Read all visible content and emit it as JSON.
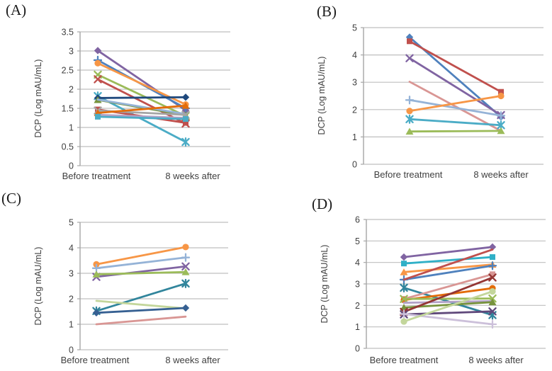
{
  "figure": {
    "panels": [
      "(A)",
      "(B)",
      "(C)",
      "(D)"
    ],
    "y_axis_label": "DCP (Log mAU/mL)",
    "x_categories": [
      "Before treatment",
      "8 weeks after"
    ],
    "colors": {
      "gridline": "#BFBFBF",
      "axis": "#A6A6A6",
      "text": "#3F3F3F"
    }
  },
  "chart_data": [
    {
      "panel": "(A)",
      "type": "line",
      "categories": [
        "Before treatment",
        "8 weeks after"
      ],
      "ylabel": "DCP (Log mAU/mL)",
      "ylim": [
        0,
        3.5
      ],
      "yticks": [
        0,
        0.5,
        1,
        1.5,
        2,
        2.5,
        3,
        3.5
      ],
      "grid": true,
      "legend": "none",
      "series": [
        {
          "color": "#8064A2",
          "marker": "diamond",
          "values": [
            3.01,
            1.45
          ]
        },
        {
          "color": "#4F81BD",
          "marker": "plus",
          "values": [
            2.76,
            1.5
          ]
        },
        {
          "color": "#F79646",
          "marker": "circle",
          "values": [
            2.68,
            1.6
          ]
        },
        {
          "color": "#9BBB59",
          "marker": "x",
          "values": [
            2.38,
            1.3
          ]
        },
        {
          "color": "#C0504D",
          "marker": "x",
          "values": [
            2.26,
            1.1
          ]
        },
        {
          "color": "#4BACC6",
          "marker": "star",
          "values": [
            1.82,
            0.62
          ]
        },
        {
          "color": "#1F497D",
          "marker": "diamond",
          "values": [
            1.77,
            1.79
          ]
        },
        {
          "color": "#77933C",
          "marker": "triangle",
          "values": [
            1.72,
            1.32
          ]
        },
        {
          "color": "#95B3D7",
          "marker": "dash",
          "values": [
            1.73,
            1.35
          ]
        },
        {
          "color": "#C0504D",
          "marker": "square",
          "values": [
            1.47,
            1.12
          ]
        },
        {
          "color": "#A5A5A5",
          "marker": "x",
          "values": [
            1.44,
            1.33
          ]
        },
        {
          "color": "#E36C09",
          "marker": "triangle",
          "values": [
            1.38,
            1.57
          ]
        },
        {
          "color": "#B3A2C7",
          "marker": "dash",
          "values": [
            1.33,
            1.25
          ]
        },
        {
          "color": "#4BACC6",
          "marker": "square",
          "values": [
            1.28,
            1.22
          ]
        }
      ]
    },
    {
      "panel": "(B)",
      "type": "line",
      "categories": [
        "Before treatment",
        "8 weeks after"
      ],
      "ylabel": "DCP (Log mAU/mL)",
      "ylim": [
        0,
        5
      ],
      "yticks": [
        0,
        1,
        2,
        3,
        4,
        5
      ],
      "grid": true,
      "legend": "none",
      "series": [
        {
          "color": "#4F81BD",
          "marker": "diamond",
          "values": [
            4.65,
            1.73
          ]
        },
        {
          "color": "#C0504D",
          "marker": "square",
          "values": [
            4.5,
            2.65
          ]
        },
        {
          "color": "#8064A2",
          "marker": "x",
          "values": [
            3.88,
            1.8
          ]
        },
        {
          "color": "#D99694",
          "marker": "dash",
          "values": [
            3.02,
            1.22
          ]
        },
        {
          "color": "#95B3D7",
          "marker": "plus",
          "values": [
            2.35,
            1.78
          ]
        },
        {
          "color": "#F79646",
          "marker": "circle",
          "values": [
            1.95,
            2.5
          ]
        },
        {
          "color": "#4BACC6",
          "marker": "star",
          "values": [
            1.65,
            1.43
          ]
        },
        {
          "color": "#9BBB59",
          "marker": "triangle",
          "values": [
            1.2,
            1.22
          ]
        }
      ]
    },
    {
      "panel": "(C)",
      "type": "line",
      "categories": [
        "Before treatment",
        "8 weeks after"
      ],
      "ylabel": "DCP (Log mAU/mL)",
      "ylim": [
        0,
        5
      ],
      "yticks": [
        0,
        1,
        2,
        3,
        4,
        5
      ],
      "grid": true,
      "legend": "none",
      "series": [
        {
          "color": "#F79646",
          "marker": "circle",
          "values": [
            3.35,
            4.03
          ]
        },
        {
          "color": "#95B3D7",
          "marker": "plus",
          "values": [
            3.2,
            3.62
          ]
        },
        {
          "color": "#8064A2",
          "marker": "x",
          "values": [
            2.86,
            3.27
          ]
        },
        {
          "color": "#9BBB59",
          "marker": "triangle",
          "values": [
            2.96,
            3.05
          ]
        },
        {
          "color": "#31859C",
          "marker": "star",
          "values": [
            1.52,
            2.6
          ]
        },
        {
          "color": "#C3D69B",
          "marker": "dash",
          "values": [
            1.92,
            1.62
          ]
        },
        {
          "color": "#366092",
          "marker": "diamond",
          "values": [
            1.45,
            1.64
          ]
        },
        {
          "color": "#D99694",
          "marker": "dash",
          "values": [
            1.0,
            1.3
          ]
        }
      ]
    },
    {
      "panel": "(D)",
      "type": "line",
      "categories": [
        "Before treatment",
        "8 weeks after"
      ],
      "ylabel": "DCP (Log mAU/mL)",
      "ylim": [
        0,
        6
      ],
      "yticks": [
        0,
        1,
        2,
        3,
        4,
        5,
        6
      ],
      "grid": true,
      "legend": "none",
      "series": [
        {
          "color": "#8064A2",
          "marker": "diamond",
          "values": [
            4.25,
            4.72
          ]
        },
        {
          "color": "#30B0C7",
          "marker": "square",
          "values": [
            3.95,
            4.25
          ]
        },
        {
          "color": "#F79646",
          "marker": "triangle",
          "values": [
            3.55,
            3.9
          ]
        },
        {
          "color": "#4F81BD",
          "marker": "plus",
          "values": [
            3.2,
            3.85
          ]
        },
        {
          "color": "#C0504D",
          "marker": "dash",
          "values": [
            3.2,
            4.6
          ]
        },
        {
          "color": "#31859C",
          "marker": "star",
          "values": [
            2.82,
            1.55
          ]
        },
        {
          "color": "#D99694",
          "marker": "square",
          "values": [
            2.3,
            3.45
          ]
        },
        {
          "color": "#E36C09",
          "marker": "circle",
          "values": [
            2.25,
            2.8
          ]
        },
        {
          "color": "#9BBB59",
          "marker": "x",
          "values": [
            2.3,
            2.32
          ]
        },
        {
          "color": "#B3A2C7",
          "marker": "dash",
          "values": [
            2.12,
            2.2
          ]
        },
        {
          "color": "#77933C",
          "marker": "triangle",
          "values": [
            1.9,
            2.15
          ]
        },
        {
          "color": "#943634",
          "marker": "x",
          "values": [
            1.7,
            3.3
          ]
        },
        {
          "color": "#60497B",
          "marker": "x",
          "values": [
            1.58,
            1.72
          ]
        },
        {
          "color": "#CCC0DA",
          "marker": "plus",
          "values": [
            1.6,
            1.12
          ]
        },
        {
          "color": "#C3D69B",
          "marker": "circle",
          "values": [
            1.25,
            2.65
          ]
        }
      ]
    }
  ]
}
